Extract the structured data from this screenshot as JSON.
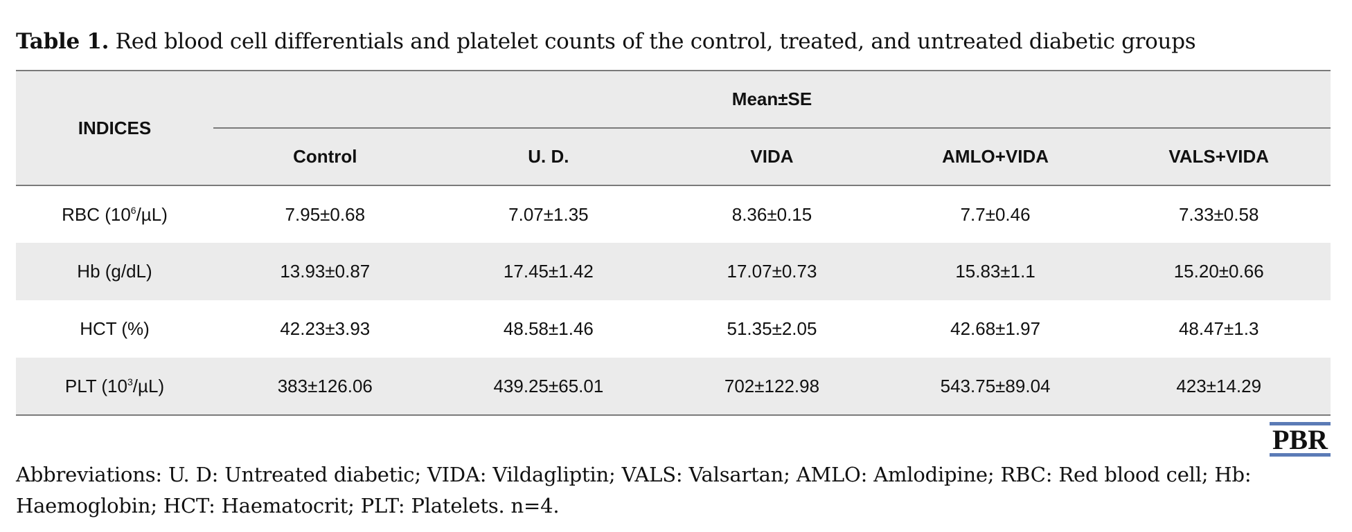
{
  "caption": {
    "label": "Table 1.",
    "text": " Red blood cell differentials and platelet counts of the control, treated, and untreated diabetic groups"
  },
  "table": {
    "indices_header": "INDICES",
    "group_header": "Mean±SE",
    "columns": [
      "Control",
      "U. D.",
      "VIDA",
      "AMLO+VIDA",
      "VALS+VIDA"
    ],
    "rows": [
      {
        "label_main": "RBC (10",
        "label_sup": "6",
        "label_tail": "/µL)",
        "values": [
          "7.95±0.68",
          "7.07±1.35",
          "8.36±0.15",
          "7.7±0.46",
          "7.33±0.58"
        ]
      },
      {
        "label_main": "Hb (g/dL)",
        "label_sup": "",
        "label_tail": "",
        "values": [
          "13.93±0.87",
          "17.45±1.42",
          "17.07±0.73",
          "15.83±1.1",
          "15.20±0.66"
        ]
      },
      {
        "label_main": "HCT (%)",
        "label_sup": "",
        "label_tail": "",
        "values": [
          "42.23±3.93",
          "48.58±1.46",
          "51.35±2.05",
          "42.68±1.97",
          "48.47±1.3"
        ]
      },
      {
        "label_main": "PLT (10",
        "label_sup": "3",
        "label_tail": "/µL)",
        "values": [
          "383±126.06",
          "439.25±65.01",
          "702±122.98",
          "543.75±89.04",
          "423±14.29"
        ]
      }
    ]
  },
  "logo": {
    "text": "PBR",
    "accent": "#5b7bb6"
  },
  "footnote": "Abbreviations: U. D: Untreated diabetic; VIDA: Vildagliptin; VALS: Valsartan; AMLO: Amlodipine; RBC: Red blood cell; Hb: Haemoglobin; HCT: Haematocrit; PLT: Platelets. n=4."
}
